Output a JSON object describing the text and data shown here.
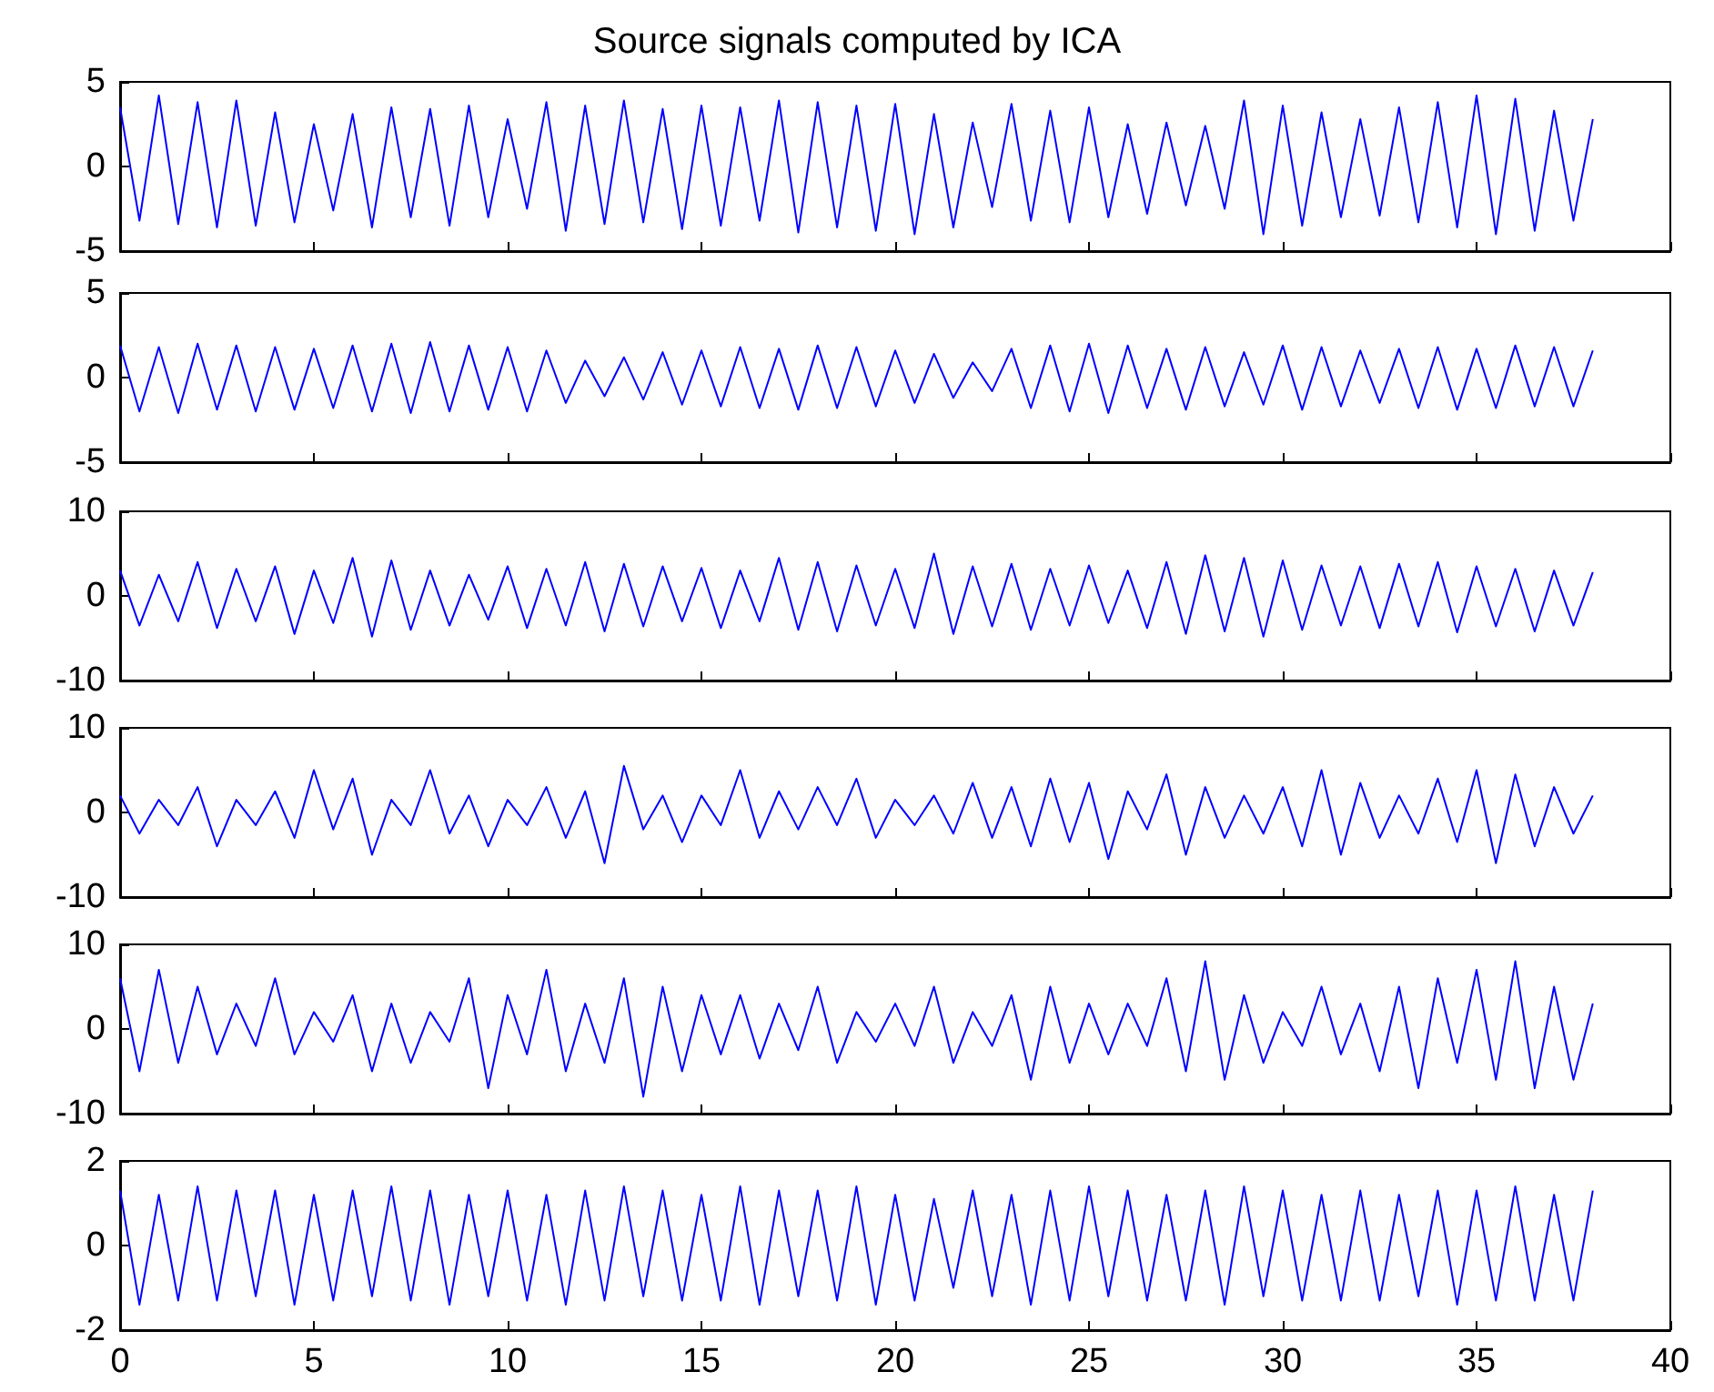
{
  "chart_data": [
    {
      "type": "line",
      "title": "Source signals computed by ICA",
      "xlim": [
        0,
        40
      ],
      "xticks": [
        0,
        5,
        10,
        15,
        20,
        25,
        30,
        35,
        40
      ],
      "ylim": [
        -5,
        5
      ],
      "yticks": [
        -5,
        0,
        5
      ],
      "tick_labels": "y",
      "x": [
        0,
        0.5,
        1,
        1.5,
        2,
        2.5,
        3,
        3.5,
        4,
        4.5,
        5,
        5.5,
        6,
        6.5,
        7,
        7.5,
        8,
        8.5,
        9,
        9.5,
        10,
        10.5,
        11,
        11.5,
        12,
        12.5,
        13,
        13.5,
        14,
        14.5,
        15,
        15.5,
        16,
        16.5,
        17,
        17.5,
        18,
        18.5,
        19,
        19.5,
        20,
        20.5,
        21,
        21.5,
        22,
        22.5,
        23,
        23.5,
        24,
        24.5,
        25,
        25.5,
        26,
        26.5,
        27,
        27.5,
        28,
        28.5,
        29,
        29.5,
        30,
        30.5,
        31,
        31.5,
        32,
        32.5,
        33,
        33.5,
        34,
        34.5,
        35,
        35.5,
        36,
        36.5,
        37,
        37.5,
        38
      ],
      "series": [
        {
          "color": "#0000ff",
          "values": [
            3.5,
            -3.2,
            4.2,
            -3.4,
            3.8,
            -3.6,
            3.9,
            -3.5,
            3.2,
            -3.3,
            2.5,
            -2.6,
            3.1,
            -3.6,
            3.5,
            -3,
            3.4,
            -3.5,
            3.6,
            -3,
            2.8,
            -2.5,
            3.8,
            -3.8,
            3.6,
            -3.4,
            3.9,
            -3.3,
            3.4,
            -3.7,
            3.6,
            -3.5,
            3.5,
            -3.2,
            3.9,
            -3.9,
            3.8,
            -3.6,
            3.6,
            -3.8,
            3.7,
            -4,
            3.1,
            -3.6,
            2.6,
            -2.4,
            3.7,
            -3.2,
            3.3,
            -3.3,
            3.5,
            -3,
            2.5,
            -2.8,
            2.6,
            -2.3,
            2.4,
            -2.5,
            3.9,
            -4,
            3.6,
            -3.5,
            3.2,
            -3,
            2.8,
            -2.9,
            3.5,
            -3.3,
            3.8,
            -3.6,
            4.2,
            -4,
            4,
            -3.8,
            3.3,
            -3.2,
            2.8
          ]
        }
      ]
    },
    {
      "type": "line",
      "xlim": [
        0,
        40
      ],
      "xticks": [
        0,
        5,
        10,
        15,
        20,
        25,
        30,
        35,
        40
      ],
      "ylim": [
        -5,
        5
      ],
      "yticks": [
        -5,
        0,
        5
      ],
      "tick_labels": "y",
      "x": [
        0,
        0.5,
        1,
        1.5,
        2,
        2.5,
        3,
        3.5,
        4,
        4.5,
        5,
        5.5,
        6,
        6.5,
        7,
        7.5,
        8,
        8.5,
        9,
        9.5,
        10,
        10.5,
        11,
        11.5,
        12,
        12.5,
        13,
        13.5,
        14,
        14.5,
        15,
        15.5,
        16,
        16.5,
        17,
        17.5,
        18,
        18.5,
        19,
        19.5,
        20,
        20.5,
        21,
        21.5,
        22,
        22.5,
        23,
        23.5,
        24,
        24.5,
        25,
        25.5,
        26,
        26.5,
        27,
        27.5,
        28,
        28.5,
        29,
        29.5,
        30,
        30.5,
        31,
        31.5,
        32,
        32.5,
        33,
        33.5,
        34,
        34.5,
        35,
        35.5,
        36,
        36.5,
        37,
        37.5,
        38
      ],
      "series": [
        {
          "color": "#0000ff",
          "values": [
            1.9,
            -2,
            1.8,
            -2.1,
            2,
            -1.9,
            1.9,
            -2,
            1.8,
            -1.9,
            1.7,
            -1.8,
            1.9,
            -2,
            2,
            -2.1,
            2.1,
            -2,
            1.9,
            -1.9,
            1.8,
            -2,
            1.6,
            -1.5,
            1,
            -1.1,
            1.2,
            -1.3,
            1.5,
            -1.6,
            1.6,
            -1.7,
            1.8,
            -1.8,
            1.7,
            -1.9,
            1.9,
            -1.8,
            1.8,
            -1.7,
            1.6,
            -1.5,
            1.4,
            -1.2,
            0.9,
            -0.8,
            1.7,
            -1.8,
            1.9,
            -2,
            2,
            -2.1,
            1.9,
            -1.8,
            1.7,
            -1.9,
            1.8,
            -1.7,
            1.5,
            -1.6,
            1.9,
            -1.9,
            1.8,
            -1.7,
            1.6,
            -1.5,
            1.7,
            -1.8,
            1.8,
            -1.9,
            1.7,
            -1.8,
            1.9,
            -1.7,
            1.8,
            -1.7,
            1.6
          ]
        }
      ]
    },
    {
      "type": "line",
      "xlim": [
        0,
        40
      ],
      "xticks": [
        0,
        5,
        10,
        15,
        20,
        25,
        30,
        35,
        40
      ],
      "ylim": [
        -10,
        10
      ],
      "yticks": [
        -10,
        0,
        10
      ],
      "tick_labels": "y",
      "x": [
        0,
        0.5,
        1,
        1.5,
        2,
        2.5,
        3,
        3.5,
        4,
        4.5,
        5,
        5.5,
        6,
        6.5,
        7,
        7.5,
        8,
        8.5,
        9,
        9.5,
        10,
        10.5,
        11,
        11.5,
        12,
        12.5,
        13,
        13.5,
        14,
        14.5,
        15,
        15.5,
        16,
        16.5,
        17,
        17.5,
        18,
        18.5,
        19,
        19.5,
        20,
        20.5,
        21,
        21.5,
        22,
        22.5,
        23,
        23.5,
        24,
        24.5,
        25,
        25.5,
        26,
        26.5,
        27,
        27.5,
        28,
        28.5,
        29,
        29.5,
        30,
        30.5,
        31,
        31.5,
        32,
        32.5,
        33,
        33.5,
        34,
        34.5,
        35,
        35.5,
        36,
        36.5,
        37,
        37.5,
        38
      ],
      "series": [
        {
          "color": "#0000ff",
          "values": [
            3,
            -3.5,
            2.5,
            -3,
            4,
            -3.8,
            3.2,
            -3,
            3.5,
            -4.5,
            3,
            -3.2,
            4.5,
            -4.8,
            4.2,
            -4,
            3,
            -3.5,
            2.5,
            -2.8,
            3.5,
            -3.8,
            3.2,
            -3.5,
            4,
            -4.2,
            3.8,
            -3.6,
            3.5,
            -3,
            3.3,
            -3.8,
            3,
            -3,
            4.5,
            -4,
            4,
            -4.2,
            3.6,
            -3.5,
            3.2,
            -3.8,
            5,
            -4.5,
            3.5,
            -3.6,
            3.8,
            -4,
            3.2,
            -3.5,
            3.6,
            -3.2,
            3,
            -3.8,
            4,
            -4.5,
            4.8,
            -4.2,
            4.5,
            -4.8,
            4.2,
            -4,
            3.6,
            -3.5,
            3.5,
            -3.8,
            3.8,
            -3.6,
            4,
            -4.3,
            3.5,
            -3.6,
            3.2,
            -4.2,
            3,
            -3.5,
            2.8
          ]
        }
      ]
    },
    {
      "type": "line",
      "xlim": [
        0,
        40
      ],
      "xticks": [
        0,
        5,
        10,
        15,
        20,
        25,
        30,
        35,
        40
      ],
      "ylim": [
        -10,
        10
      ],
      "yticks": [
        -10,
        0,
        10
      ],
      "tick_labels": "y",
      "x": [
        0,
        0.5,
        1,
        1.5,
        2,
        2.5,
        3,
        3.5,
        4,
        4.5,
        5,
        5.5,
        6,
        6.5,
        7,
        7.5,
        8,
        8.5,
        9,
        9.5,
        10,
        10.5,
        11,
        11.5,
        12,
        12.5,
        13,
        13.5,
        14,
        14.5,
        15,
        15.5,
        16,
        16.5,
        17,
        17.5,
        18,
        18.5,
        19,
        19.5,
        20,
        20.5,
        21,
        21.5,
        22,
        22.5,
        23,
        23.5,
        24,
        24.5,
        25,
        25.5,
        26,
        26.5,
        27,
        27.5,
        28,
        28.5,
        29,
        29.5,
        30,
        30.5,
        31,
        31.5,
        32,
        32.5,
        33,
        33.5,
        34,
        34.5,
        35,
        35.5,
        36,
        36.5,
        37,
        37.5,
        38
      ],
      "series": [
        {
          "color": "#0000ff",
          "values": [
            2,
            -2.5,
            1.5,
            -1.5,
            3,
            -4,
            1.5,
            -1.5,
            2.5,
            -3,
            5,
            -2,
            4,
            -5,
            1.5,
            -1.5,
            5,
            -2.5,
            2,
            -4,
            1.5,
            -1.5,
            3,
            -3,
            2.5,
            -6,
            5.5,
            -2,
            2,
            -3.5,
            2,
            -1.5,
            5,
            -3,
            2.5,
            -2,
            3,
            -1.5,
            4,
            -3,
            1.5,
            -1.5,
            2,
            -2.5,
            3.5,
            -3,
            3,
            -4,
            4,
            -3.5,
            3.5,
            -5.5,
            2.5,
            -2,
            4.5,
            -5,
            3,
            -3,
            2,
            -2.5,
            3,
            -4,
            5,
            -5,
            3.5,
            -3,
            2,
            -2.5,
            4,
            -3.5,
            5,
            -6,
            4.5,
            -4,
            3,
            -2.5,
            2
          ]
        }
      ]
    },
    {
      "type": "line",
      "xlim": [
        0,
        40
      ],
      "xticks": [
        0,
        5,
        10,
        15,
        20,
        25,
        30,
        35,
        40
      ],
      "ylim": [
        -10,
        10
      ],
      "yticks": [
        -10,
        0,
        10
      ],
      "tick_labels": "y",
      "x": [
        0,
        0.5,
        1,
        1.5,
        2,
        2.5,
        3,
        3.5,
        4,
        4.5,
        5,
        5.5,
        6,
        6.5,
        7,
        7.5,
        8,
        8.5,
        9,
        9.5,
        10,
        10.5,
        11,
        11.5,
        12,
        12.5,
        13,
        13.5,
        14,
        14.5,
        15,
        15.5,
        16,
        16.5,
        17,
        17.5,
        18,
        18.5,
        19,
        19.5,
        20,
        20.5,
        21,
        21.5,
        22,
        22.5,
        23,
        23.5,
        24,
        24.5,
        25,
        25.5,
        26,
        26.5,
        27,
        27.5,
        28,
        28.5,
        29,
        29.5,
        30,
        30.5,
        31,
        31.5,
        32,
        32.5,
        33,
        33.5,
        34,
        34.5,
        35,
        35.5,
        36,
        36.5,
        37,
        37.5,
        38
      ],
      "series": [
        {
          "color": "#0000ff",
          "values": [
            6,
            -5,
            7,
            -4,
            5,
            -3,
            3,
            -2,
            6,
            -3,
            2,
            -1.5,
            4,
            -5,
            3,
            -4,
            2,
            -1.5,
            6,
            -7,
            4,
            -3,
            7,
            -5,
            3,
            -4,
            6,
            -8,
            5,
            -5,
            4,
            -3,
            4,
            -3.5,
            3,
            -2.5,
            5,
            -4,
            2,
            -1.5,
            3,
            -2,
            5,
            -4,
            2,
            -2,
            4,
            -6,
            5,
            -4,
            3,
            -3,
            3,
            -2,
            6,
            -5,
            8,
            -6,
            4,
            -4,
            2,
            -2,
            5,
            -3,
            3,
            -5,
            5,
            -7,
            6,
            -4,
            7,
            -6,
            8,
            -7,
            5,
            -6,
            3
          ]
        }
      ]
    },
    {
      "type": "line",
      "xlim": [
        0,
        40
      ],
      "xticks": [
        0,
        5,
        10,
        15,
        20,
        25,
        30,
        35,
        40
      ],
      "ylim": [
        -2,
        2
      ],
      "yticks": [
        -2,
        0,
        2
      ],
      "x": [
        0,
        0.5,
        1,
        1.5,
        2,
        2.5,
        3,
        3.5,
        4,
        4.5,
        5,
        5.5,
        6,
        6.5,
        7,
        7.5,
        8,
        8.5,
        9,
        9.5,
        10,
        10.5,
        11,
        11.5,
        12,
        12.5,
        13,
        13.5,
        14,
        14.5,
        15,
        15.5,
        16,
        16.5,
        17,
        17.5,
        18,
        18.5,
        19,
        19.5,
        20,
        20.5,
        21,
        21.5,
        22,
        22.5,
        23,
        23.5,
        24,
        24.5,
        25,
        25.5,
        26,
        26.5,
        27,
        27.5,
        28,
        28.5,
        29,
        29.5,
        30,
        30.5,
        31,
        31.5,
        32,
        32.5,
        33,
        33.5,
        34,
        34.5,
        35,
        35.5,
        36,
        36.5,
        37,
        37.5,
        38
      ],
      "series": [
        {
          "color": "#0000ff",
          "values": [
            1.3,
            -1.4,
            1.2,
            -1.3,
            1.4,
            -1.3,
            1.3,
            -1.2,
            1.3,
            -1.4,
            1.2,
            -1.3,
            1.3,
            -1.2,
            1.4,
            -1.3,
            1.3,
            -1.4,
            1.2,
            -1.2,
            1.3,
            -1.3,
            1.2,
            -1.4,
            1.3,
            -1.3,
            1.4,
            -1.2,
            1.3,
            -1.3,
            1.2,
            -1.3,
            1.4,
            -1.4,
            1.3,
            -1.2,
            1.3,
            -1.3,
            1.4,
            -1.4,
            1.2,
            -1.3,
            1.1,
            -1,
            1.3,
            -1.2,
            1.2,
            -1.4,
            1.3,
            -1.3,
            1.4,
            -1.2,
            1.3,
            -1.3,
            1.2,
            -1.3,
            1.3,
            -1.4,
            1.4,
            -1.2,
            1.3,
            -1.3,
            1.2,
            -1.3,
            1.3,
            -1.3,
            1.2,
            -1.2,
            1.3,
            -1.4,
            1.3,
            -1.3,
            1.4,
            -1.3,
            1.2,
            -1.3,
            1.3
          ]
        }
      ]
    }
  ]
}
